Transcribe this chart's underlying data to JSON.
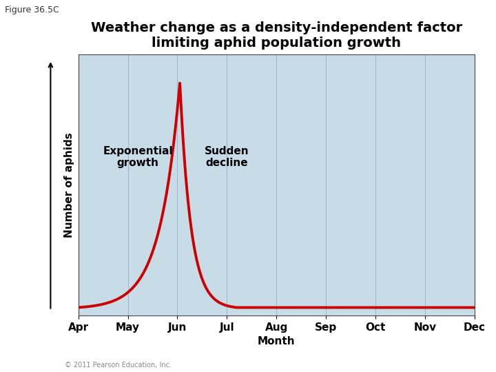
{
  "title_line1": "Weather change as a density-independent factor",
  "title_line2": "limiting aphid population growth",
  "figure_label": "Figure 36.5C",
  "xlabel": "Month",
  "ylabel": "Number of aphids",
  "x_tick_labels": [
    "Apr",
    "May",
    "Jun",
    "Jul",
    "Aug",
    "Sep",
    "Oct",
    "Nov",
    "Dec"
  ],
  "fig_bg_color": "#ffffff",
  "plot_bg_color": "#c8dce8",
  "line_color": "#cc0000",
  "line_width": 2.8,
  "grid_color": "#9ab8cc",
  "annotation_exp_growth": "Exponential\ngrowth",
  "annotation_sudden_decline": "Sudden\ndecline",
  "title_fontsize": 14,
  "label_fontsize": 11,
  "tick_fontsize": 11,
  "annotation_fontsize": 11,
  "copyright": "© 2011 Pearson Education, Inc."
}
